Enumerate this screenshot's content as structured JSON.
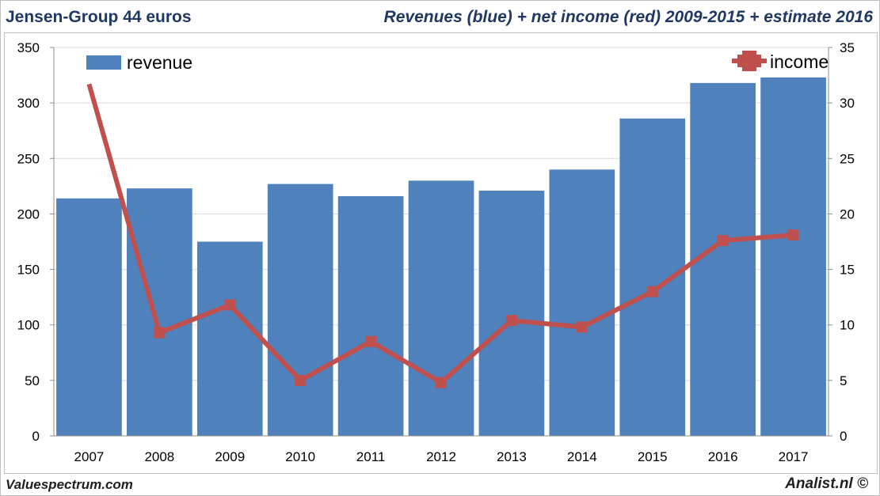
{
  "header": {
    "title": "Jensen-Group 44 euros",
    "subtitle": "Revenues (blue) + net income (red) 2009-2015 + estimate 2016"
  },
  "footer": {
    "left": "Valuespectrum.com",
    "right": "Analist.nl ©"
  },
  "colors": {
    "revenue_bar": "#4f81bd",
    "income_line": "#c0504d",
    "gridline": "#d9d9d9",
    "axis_text": "#000000",
    "title_text": "#1f3864"
  },
  "chart_data": {
    "type": "bar",
    "title": "Revenues (blue) + net income (red) 2009-2015 + estimate 2016",
    "categories": [
      "2007",
      "2008",
      "2009",
      "2010",
      "2011",
      "2012",
      "2013",
      "2014",
      "2015",
      "2016",
      "2017"
    ],
    "series": [
      {
        "name": "revenue",
        "type": "bar",
        "axis": "left",
        "values": [
          214,
          223,
          175,
          227,
          216,
          230,
          221,
          240,
          286,
          318,
          323
        ]
      },
      {
        "name": "income",
        "type": "line",
        "axis": "right",
        "values": [
          31.7,
          9.3,
          11.8,
          5.0,
          8.5,
          4.8,
          10.4,
          9.8,
          13.0,
          17.6,
          18.1
        ]
      }
    ],
    "y_left": {
      "min": 0,
      "max": 350,
      "ticks": [
        0,
        50,
        100,
        150,
        200,
        250,
        300,
        350
      ]
    },
    "y_right": {
      "min": 0,
      "max": 35,
      "ticks": [
        0,
        5,
        10,
        15,
        20,
        25,
        30,
        35
      ]
    },
    "grid": true,
    "legend": [
      {
        "label": "revenue",
        "position": "top-left"
      },
      {
        "label": "income",
        "position": "top-right"
      }
    ]
  }
}
